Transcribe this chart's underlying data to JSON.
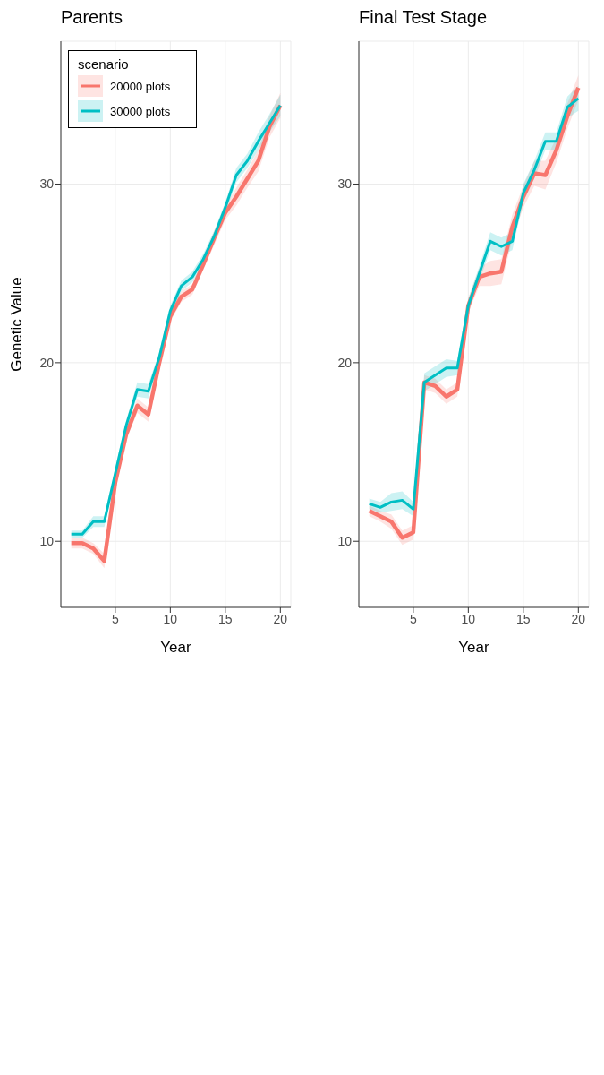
{
  "chart_data": [
    {
      "type": "line",
      "title": "Parents",
      "xlabel": "Year",
      "ylabel": "Genetic Value",
      "legend": "top left",
      "legend_title": "scenario",
      "grid": true,
      "xlim": [
        0.05,
        20.95
      ],
      "xticks": [
        5,
        10,
        15,
        20
      ],
      "ylim": [
        6.3,
        38
      ],
      "yticks": [
        10,
        20,
        30
      ],
      "x": [
        1,
        2,
        3,
        4,
        5,
        6,
        7,
        8,
        9,
        10,
        11,
        12,
        13,
        14,
        15,
        16,
        17,
        18,
        19,
        20
      ],
      "series": [
        {
          "name": "20000 plots",
          "color": "#f8766d",
          "values": [
            9.9,
            9.9,
            9.6,
            8.9,
            13.3,
            16.0,
            17.6,
            17.1,
            20.0,
            22.6,
            23.7,
            24.1,
            25.5,
            27.0,
            28.4,
            29.3,
            30.3,
            31.3,
            33.2,
            34.4
          ],
          "lower": [
            9.6,
            9.6,
            9.3,
            8.5,
            13.0,
            15.7,
            17.2,
            16.7,
            19.7,
            22.3,
            23.4,
            23.8,
            25.2,
            26.6,
            28.0,
            28.8,
            29.8,
            30.7,
            32.6,
            33.7
          ],
          "upper": [
            10.2,
            10.2,
            9.9,
            9.3,
            13.6,
            16.3,
            18.0,
            17.5,
            20.3,
            22.9,
            24.0,
            24.4,
            25.8,
            27.4,
            28.8,
            29.8,
            30.8,
            31.9,
            33.8,
            35.1
          ]
        },
        {
          "name": "30000 plots",
          "color": "#00bfc4",
          "values": [
            10.4,
            10.4,
            11.1,
            11.1,
            13.8,
            16.5,
            18.5,
            18.4,
            20.3,
            22.9,
            24.3,
            24.8,
            25.8,
            27.1,
            28.7,
            30.5,
            31.3,
            32.4,
            33.4,
            34.4
          ],
          "lower": [
            10.2,
            10.2,
            10.8,
            10.8,
            13.5,
            16.2,
            18.1,
            18.0,
            20.0,
            22.6,
            24.0,
            24.5,
            25.5,
            26.8,
            28.4,
            30.1,
            30.9,
            31.9,
            32.9,
            33.8
          ],
          "upper": [
            10.6,
            10.6,
            11.4,
            11.4,
            14.1,
            16.8,
            18.9,
            18.8,
            20.6,
            23.2,
            24.6,
            25.1,
            26.1,
            27.4,
            29.0,
            30.9,
            31.7,
            32.9,
            33.9,
            35.0
          ]
        }
      ]
    },
    {
      "type": "line",
      "title": "Final Test Stage",
      "xlabel": "Year",
      "grid": true,
      "xlim": [
        0.05,
        20.95
      ],
      "xticks": [
        5,
        10,
        15,
        20
      ],
      "ylim": [
        6.3,
        38
      ],
      "yticks": [
        10,
        20,
        30
      ],
      "x": [
        1,
        2,
        3,
        4,
        5,
        6,
        7,
        8,
        9,
        10,
        11,
        12,
        13,
        14,
        15,
        16,
        17,
        18,
        19,
        20
      ],
      "series": [
        {
          "color": "#f8766d",
          "values": [
            11.7,
            11.4,
            11.1,
            10.2,
            10.5,
            18.9,
            18.7,
            18.1,
            18.5,
            23.2,
            24.8,
            25.0,
            25.1,
            27.6,
            29.3,
            30.6,
            30.5,
            31.9,
            33.8,
            35.4
          ],
          "lower": [
            11.4,
            11.1,
            10.7,
            9.8,
            10.1,
            18.5,
            18.3,
            17.7,
            18.1,
            22.8,
            24.3,
            24.3,
            24.4,
            26.9,
            28.7,
            29.9,
            29.7,
            31.2,
            33.1,
            34.7
          ],
          "upper": [
            12.0,
            11.7,
            11.5,
            10.6,
            10.9,
            19.3,
            19.1,
            18.5,
            18.9,
            23.6,
            25.3,
            25.7,
            25.8,
            28.3,
            29.9,
            31.3,
            31.3,
            32.6,
            34.5,
            36.1
          ]
        },
        {
          "color": "#00bfc4",
          "values": [
            12.1,
            11.9,
            12.2,
            12.3,
            11.8,
            18.9,
            19.3,
            19.7,
            19.7,
            23.2,
            25.0,
            26.8,
            26.5,
            26.8,
            29.5,
            30.8,
            32.4,
            32.4,
            34.3,
            34.8
          ],
          "lower": [
            11.8,
            11.6,
            11.7,
            11.8,
            11.4,
            18.4,
            18.8,
            19.2,
            19.3,
            22.8,
            24.6,
            26.3,
            26.0,
            26.3,
            29.0,
            30.3,
            31.9,
            31.9,
            33.7,
            34.1
          ],
          "upper": [
            12.4,
            12.2,
            12.7,
            12.8,
            12.2,
            19.4,
            19.8,
            20.2,
            20.1,
            23.6,
            25.4,
            27.3,
            27.0,
            27.3,
            30.0,
            31.3,
            32.9,
            32.9,
            34.9,
            35.5
          ]
        }
      ]
    }
  ]
}
